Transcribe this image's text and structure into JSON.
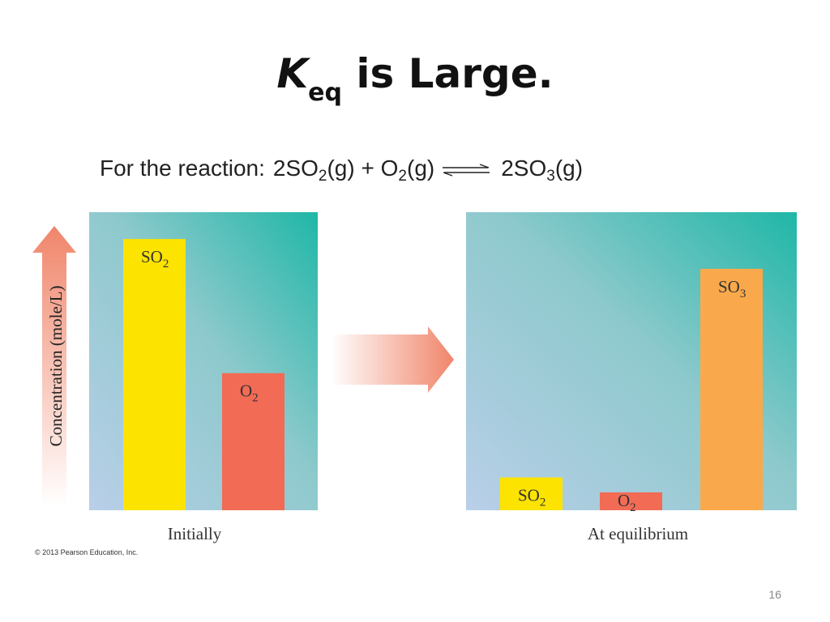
{
  "slide": {
    "title_k": "K",
    "title_sub": "eq",
    "title_rest": " is Large.",
    "reaction_prefix": "For the reaction:",
    "reaction": {
      "r1_coef": "2SO",
      "r1_sub": "2",
      "r1_phase": "(g)",
      "plus": "+",
      "r2": "O",
      "r2_sub": "2",
      "r2_phase": "(g)",
      "p1_coef": "2SO",
      "p1_sub": "3",
      "p1_phase": "(g)"
    },
    "copyright": "© 2013 Pearson Education, Inc.",
    "page_number": "16"
  },
  "chart_data": [
    {
      "type": "bar",
      "xlabel": "Initially",
      "ylabel": "Concentration (mole/L)",
      "ylim": [
        0,
        1
      ],
      "bars": [
        {
          "label": "SO",
          "sub": "2",
          "value": 0.91,
          "color": "#fce300"
        },
        {
          "label": "O",
          "sub": "2",
          "value": 0.46,
          "color": "#f26b55"
        }
      ]
    },
    {
      "type": "bar",
      "xlabel": "At equilibrium",
      "ylim": [
        0,
        1
      ],
      "bars": [
        {
          "label": "SO",
          "sub": "2",
          "value": 0.11,
          "color": "#fce300"
        },
        {
          "label": "O",
          "sub": "2",
          "value": 0.06,
          "color": "#f26b55"
        },
        {
          "label": "SO",
          "sub": "3",
          "value": 0.81,
          "color": "#f9a94b"
        }
      ]
    }
  ]
}
